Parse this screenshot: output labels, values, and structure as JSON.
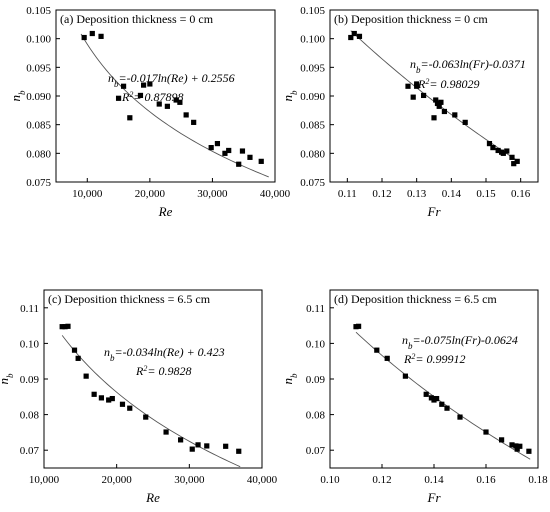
{
  "chart_data": [
    {
      "type": "scatter",
      "title": "(a) Deposition thickness = 0 cm",
      "xlabel": "Re",
      "ylabel": "n",
      "ylabel_sub": "b",
      "xlim": [
        5000,
        40000
      ],
      "ylim": [
        0.075,
        0.105
      ],
      "xticks": [
        10000,
        20000,
        30000,
        40000
      ],
      "xtick_labels": [
        "10,000",
        "20,000",
        "30,000",
        "40,000"
      ],
      "yticks": [
        0.075,
        0.08,
        0.085,
        0.09,
        0.095,
        0.1,
        0.105
      ],
      "ytick_labels": [
        "0.075",
        "0.080",
        "0.085",
        "0.090",
        "0.095",
        "0.100",
        "0.105"
      ],
      "equation": "nb=-0.017ln(Re) + 0.2556",
      "r2": "R2= 0.87898",
      "fit": {
        "type": "log",
        "a": -0.017,
        "b": 0.2556,
        "from": 9000,
        "to": 39000
      },
      "points": [
        [
          9500,
          0.1002
        ],
        [
          10800,
          0.1009
        ],
        [
          12200,
          0.1004
        ],
        [
          15000,
          0.0896
        ],
        [
          15800,
          0.0917
        ],
        [
          16800,
          0.0862
        ],
        [
          18500,
          0.0901
        ],
        [
          19000,
          0.0919
        ],
        [
          20000,
          0.0921
        ],
        [
          21500,
          0.0886
        ],
        [
          22800,
          0.0882
        ],
        [
          24200,
          0.0893
        ],
        [
          24800,
          0.0889
        ],
        [
          25800,
          0.0867
        ],
        [
          27000,
          0.0854
        ],
        [
          29800,
          0.081
        ],
        [
          30800,
          0.0817
        ],
        [
          32000,
          0.08
        ],
        [
          32600,
          0.0805
        ],
        [
          34200,
          0.0781
        ],
        [
          34800,
          0.0804
        ],
        [
          36000,
          0.0793
        ],
        [
          37800,
          0.0786
        ]
      ]
    },
    {
      "type": "scatter",
      "title": "(b) Deposition thickness = 0 cm",
      "xlabel": "Fr",
      "ylabel": "n",
      "ylabel_sub": "b",
      "xlim": [
        0.105,
        0.165
      ],
      "ylim": [
        0.075,
        0.105
      ],
      "xticks": [
        0.11,
        0.12,
        0.13,
        0.14,
        0.15,
        0.16
      ],
      "xtick_labels": [
        "0.11",
        "0.12",
        "0.13",
        "0.14",
        "0.15",
        "0.16"
      ],
      "yticks": [
        0.075,
        0.08,
        0.085,
        0.09,
        0.095,
        0.1,
        0.105
      ],
      "ytick_labels": [
        "0.075",
        "0.080",
        "0.085",
        "0.090",
        "0.095",
        "0.100",
        "0.105"
      ],
      "equation": "nb=-0.063ln(Fr)-0.0371",
      "r2": "R2= 0.98029",
      "fit": {
        "type": "log",
        "a": -0.063,
        "b": -0.0371,
        "from": 0.111,
        "to": 0.1595
      },
      "points": [
        [
          0.111,
          0.1002
        ],
        [
          0.112,
          0.1009
        ],
        [
          0.1135,
          0.1004
        ],
        [
          0.1275,
          0.0917
        ],
        [
          0.129,
          0.0898
        ],
        [
          0.13,
          0.0921
        ],
        [
          0.13,
          0.0917
        ],
        [
          0.132,
          0.0901
        ],
        [
          0.135,
          0.0862
        ],
        [
          0.1355,
          0.0893
        ],
        [
          0.136,
          0.0887
        ],
        [
          0.1365,
          0.0882
        ],
        [
          0.137,
          0.0889
        ],
        [
          0.138,
          0.0873
        ],
        [
          0.141,
          0.0867
        ],
        [
          0.144,
          0.0854
        ],
        [
          0.151,
          0.0817
        ],
        [
          0.152,
          0.081
        ],
        [
          0.1535,
          0.0805
        ],
        [
          0.1545,
          0.0802
        ],
        [
          0.155,
          0.08
        ],
        [
          0.156,
          0.0804
        ],
        [
          0.1575,
          0.0793
        ],
        [
          0.158,
          0.0782
        ],
        [
          0.159,
          0.0786
        ]
      ]
    },
    {
      "type": "scatter",
      "title": "(c) Deposition thickness = 6.5 cm",
      "xlabel": "Re",
      "ylabel": "n",
      "ylabel_sub": "b",
      "xlim": [
        10000,
        40000
      ],
      "ylim": [
        0.065,
        0.115
      ],
      "xticks": [
        10000,
        20000,
        30000,
        40000
      ],
      "xtick_labels": [
        "10,000",
        "20,000",
        "30,000",
        "40,000"
      ],
      "yticks": [
        0.07,
        0.08,
        0.09,
        0.1,
        0.11
      ],
      "ytick_labels": [
        "0.07",
        "0.08",
        "0.09",
        "0.10",
        "0.11"
      ],
      "equation": "nb=-0.034ln(Re) + 0.423",
      "r2": "R2= 0.9828",
      "fit": {
        "type": "log",
        "a": -0.034,
        "b": 0.423,
        "from": 12500,
        "to": 37000
      },
      "points": [
        [
          12500,
          0.1047
        ],
        [
          12900,
          0.1047
        ],
        [
          13300,
          0.1048
        ],
        [
          14200,
          0.0981
        ],
        [
          14700,
          0.0958
        ],
        [
          15800,
          0.0908
        ],
        [
          16900,
          0.0857
        ],
        [
          17900,
          0.0847
        ],
        [
          18900,
          0.0841
        ],
        [
          19400,
          0.0845
        ],
        [
          20800,
          0.0829
        ],
        [
          21800,
          0.0818
        ],
        [
          24000,
          0.0793
        ],
        [
          26800,
          0.0751
        ],
        [
          28800,
          0.0729
        ],
        [
          30400,
          0.0703
        ],
        [
          31200,
          0.0715
        ],
        [
          32400,
          0.0712
        ],
        [
          35000,
          0.0711
        ],
        [
          36800,
          0.0697
        ]
      ]
    },
    {
      "type": "scatter",
      "title": "(d) Deposition thickness = 6.5 cm",
      "xlabel": "Fr",
      "ylabel": "n",
      "ylabel_sub": "b",
      "xlim": [
        0.1,
        0.18
      ],
      "ylim": [
        0.065,
        0.115
      ],
      "xticks": [
        0.1,
        0.12,
        0.14,
        0.16,
        0.18
      ],
      "xtick_labels": [
        "0.10",
        "0.12",
        "0.14",
        "0.16",
        "0.18"
      ],
      "yticks": [
        0.07,
        0.08,
        0.09,
        0.1,
        0.11
      ],
      "ytick_labels": [
        "0.07",
        "0.08",
        "0.09",
        "0.10",
        "0.11"
      ],
      "equation": "nb=-0.075ln(Fr)-0.0624",
      "r2": "R2= 0.99912",
      "fit": {
        "type": "log",
        "a": -0.075,
        "b": -0.0624,
        "from": 0.11,
        "to": 0.177
      },
      "points": [
        [
          0.11,
          0.1047
        ],
        [
          0.111,
          0.1048
        ],
        [
          0.118,
          0.0981
        ],
        [
          0.122,
          0.0958
        ],
        [
          0.129,
          0.0908
        ],
        [
          0.137,
          0.0857
        ],
        [
          0.139,
          0.0847
        ],
        [
          0.14,
          0.0841
        ],
        [
          0.141,
          0.0845
        ],
        [
          0.143,
          0.0829
        ],
        [
          0.145,
          0.0818
        ],
        [
          0.15,
          0.0793
        ],
        [
          0.16,
          0.0751
        ],
        [
          0.166,
          0.0729
        ],
        [
          0.17,
          0.0715
        ],
        [
          0.1715,
          0.0712
        ],
        [
          0.172,
          0.0703
        ],
        [
          0.173,
          0.0711
        ],
        [
          0.1765,
          0.0697
        ]
      ]
    }
  ]
}
